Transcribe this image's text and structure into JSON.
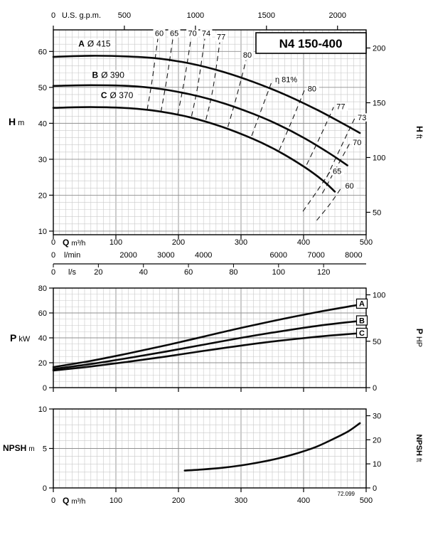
{
  "chart_data": [
    {
      "id": "head",
      "type": "line",
      "title": "N4 150-400",
      "x_axis": {
        "symbol": "Q",
        "unit": "m³/h",
        "min": 0,
        "max": 500,
        "ticks": [
          0,
          100,
          200,
          300,
          400,
          500
        ]
      },
      "x_axis_gpm": {
        "label": "U.S. g.p.m.",
        "factor": 4.4029,
        "ticks": [
          0,
          500,
          1000,
          1500,
          2000
        ]
      },
      "x_axis_lmin": {
        "label": "l/min",
        "factor": 16.6667,
        "ticks": [
          0,
          2000,
          3000,
          4000,
          6000,
          7000,
          8000
        ]
      },
      "x_axis_ls": {
        "label": "l/s",
        "factor": 0.27778,
        "ticks": [
          0,
          20,
          40,
          60,
          80,
          100,
          120
        ]
      },
      "y_left": {
        "symbol": "H",
        "unit": "m",
        "min": 9,
        "max": 66,
        "ticks": [
          10,
          20,
          30,
          40,
          50,
          60
        ]
      },
      "y_right": {
        "symbol": "H",
        "unit": "ft",
        "factor": 0.3048,
        "ticks": [
          50,
          100,
          150,
          200
        ]
      },
      "series": [
        {
          "name": "A",
          "impeller": "Ø 415",
          "label_at": [
            40,
            61.3
          ],
          "points": [
            [
              0,
              58.5
            ],
            [
              60,
              58.8
            ],
            [
              120,
              58.6
            ],
            [
              170,
              58.0
            ],
            [
              220,
              56.6
            ],
            [
              270,
              54.4
            ],
            [
              320,
              51.5
            ],
            [
              370,
              48.0
            ],
            [
              420,
              43.9
            ],
            [
              460,
              40.2
            ],
            [
              490,
              37.3
            ]
          ]
        },
        {
          "name": "B",
          "impeller": "Ø 390",
          "label_at": [
            62,
            52.6
          ],
          "points": [
            [
              0,
              50.4
            ],
            [
              60,
              50.6
            ],
            [
              120,
              50.4
            ],
            [
              170,
              49.6
            ],
            [
              220,
              48.0
            ],
            [
              270,
              45.7
            ],
            [
              320,
              42.6
            ],
            [
              360,
              39.6
            ],
            [
              400,
              36.0
            ],
            [
              440,
              31.8
            ],
            [
              470,
              28.3
            ]
          ]
        },
        {
          "name": "C",
          "impeller": "Ø 370",
          "label_at": [
            76,
            47.0
          ],
          "points": [
            [
              0,
              44.3
            ],
            [
              60,
              44.5
            ],
            [
              120,
              44.2
            ],
            [
              170,
              43.3
            ],
            [
              220,
              41.6
            ],
            [
              270,
              39.0
            ],
            [
              320,
              35.6
            ],
            [
              360,
              32.2
            ],
            [
              400,
              28.0
            ],
            [
              430,
              24.2
            ],
            [
              450,
              21.0
            ]
          ]
        }
      ],
      "efficiency_contours": [
        {
          "label": "60",
          "points": [
            [
              150,
              43.8
            ],
            [
              158,
              52.0
            ],
            [
              167,
              63.5
            ]
          ]
        },
        {
          "label": "65",
          "points": [
            [
              172,
              43.2
            ],
            [
              181,
              52.0
            ],
            [
              191,
              63.5
            ]
          ]
        },
        {
          "label": "70",
          "points": [
            [
              199,
              42.6
            ],
            [
              209,
              51.5
            ],
            [
              220,
              63.5
            ]
          ]
        },
        {
          "label": "74",
          "points": [
            [
              221,
              42.0
            ],
            [
              231,
              50.5
            ],
            [
              242,
              63.5
            ]
          ]
        },
        {
          "label": "77",
          "points": [
            [
              244,
              41.0
            ],
            [
              255,
              49.5
            ],
            [
              266,
              62.5
            ]
          ]
        },
        {
          "label": "80",
          "points": [
            [
              279,
              39.0
            ],
            [
              293,
              47.5
            ],
            [
              308,
              57.5
            ]
          ]
        },
        {
          "label": "η 81%",
          "points": [
            [
              317,
              36.5
            ],
            [
              334,
              44.5
            ],
            [
              350,
              52.0
            ]
          ]
        },
        {
          "label": "80",
          "points": [
            [
              361,
              32.5
            ],
            [
              382,
              41.0
            ],
            [
              402,
              49.5
            ]
          ]
        },
        {
          "label": "77",
          "points": [
            [
              405,
              28.5
            ],
            [
              427,
              36.5
            ],
            [
              448,
              44.5
            ]
          ]
        },
        {
          "label": "73",
          "points": [
            [
              437,
              25.0
            ],
            [
              460,
              33.5
            ],
            [
              482,
              41.5
            ]
          ]
        },
        {
          "label": "70",
          "points": [
            [
              430,
              20.5
            ],
            [
              452,
              27.5
            ],
            [
              474,
              34.5
            ]
          ]
        },
        {
          "label": "65",
          "points": [
            [
              399,
              15.5
            ],
            [
              421,
              21.0
            ],
            [
              442,
              26.5
            ]
          ]
        },
        {
          "label": "60",
          "points": [
            [
              421,
              13.0
            ],
            [
              442,
              17.5
            ],
            [
              462,
              22.5
            ]
          ]
        }
      ]
    },
    {
      "id": "power",
      "type": "line",
      "x_axis": {
        "min": 0,
        "max": 500,
        "ticks": [
          0,
          100,
          200,
          300,
          400,
          500
        ]
      },
      "y_left": {
        "symbol": "P",
        "unit": "kW",
        "min": 0,
        "max": 80,
        "ticks": [
          0,
          20,
          40,
          60,
          80
        ]
      },
      "y_right": {
        "symbol": "P",
        "unit": "HP",
        "factor": 0.7457,
        "ticks": [
          0,
          50,
          100
        ]
      },
      "series": [
        {
          "name": "A",
          "end_label": "A",
          "points": [
            [
              0,
              16.5
            ],
            [
              60,
              21.5
            ],
            [
              120,
              27.5
            ],
            [
              180,
              34.0
            ],
            [
              240,
              41.0
            ],
            [
              300,
              48.0
            ],
            [
              360,
              54.5
            ],
            [
              420,
              60.5
            ],
            [
              470,
              65.0
            ],
            [
              500,
              67.5
            ]
          ]
        },
        {
          "name": "B",
          "end_label": "B",
          "points": [
            [
              0,
              15.0
            ],
            [
              60,
              19.0
            ],
            [
              120,
              23.8
            ],
            [
              180,
              29.0
            ],
            [
              240,
              34.5
            ],
            [
              300,
              40.0
            ],
            [
              360,
              45.0
            ],
            [
              420,
              49.5
            ],
            [
              470,
              52.5
            ],
            [
              500,
              54.0
            ]
          ]
        },
        {
          "name": "C",
          "end_label": "C",
          "points": [
            [
              0,
              13.8
            ],
            [
              60,
              17.0
            ],
            [
              120,
              20.8
            ],
            [
              180,
              25.0
            ],
            [
              240,
              29.5
            ],
            [
              300,
              33.8
            ],
            [
              360,
              37.6
            ],
            [
              420,
              40.8
            ],
            [
              470,
              43.0
            ],
            [
              500,
              44.0
            ]
          ]
        }
      ]
    },
    {
      "id": "npsh",
      "type": "line",
      "x_axis": {
        "symbol": "Q",
        "unit": "m³/h",
        "min": 0,
        "max": 500,
        "ticks": [
          0,
          100,
          200,
          300,
          400,
          500
        ]
      },
      "y_left": {
        "symbol": "NPSH",
        "unit": "m",
        "min": 0,
        "max": 10,
        "ticks": [
          0,
          5,
          10
        ]
      },
      "y_right": {
        "symbol": "NPSH",
        "unit": "ft",
        "factor": 0.3048,
        "ticks": [
          0,
          10,
          20,
          30
        ]
      },
      "series": [
        {
          "name": "NPSH",
          "points": [
            [
              210,
              2.2
            ],
            [
              240,
              2.35
            ],
            [
              270,
              2.55
            ],
            [
              300,
              2.85
            ],
            [
              330,
              3.25
            ],
            [
              360,
              3.75
            ],
            [
              390,
              4.4
            ],
            [
              420,
              5.2
            ],
            [
              450,
              6.3
            ],
            [
              472,
              7.2
            ],
            [
              490,
              8.2
            ]
          ]
        }
      ],
      "note": "72.099"
    }
  ],
  "colors": {
    "curve": "#0a0a0a",
    "grid_minor": "#c9c9c9",
    "grid_major": "#8f8f8f",
    "border": "#000000"
  }
}
